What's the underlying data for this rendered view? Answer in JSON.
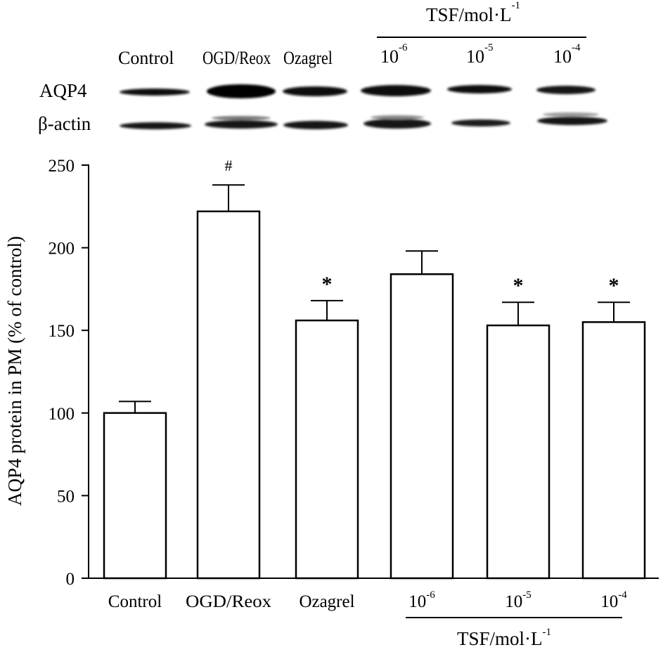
{
  "blot": {
    "group_header": {
      "base": "TSF/mol·L",
      "exp": "-1"
    },
    "lanes": [
      {
        "label": "Control"
      },
      {
        "label": "OGD/Reox"
      },
      {
        "label": "Ozagrel"
      },
      {
        "base": "10",
        "exp": "-6"
      },
      {
        "base": "10",
        "exp": "-5"
      },
      {
        "base": "10",
        "exp": "-4"
      }
    ],
    "rows": [
      "AQP4",
      "β-actin"
    ]
  },
  "chart_data": {
    "type": "bar",
    "title": "",
    "xlabel": "",
    "ylabel": "AQP4 protein in PM (% of control)",
    "ylim": [
      0,
      250
    ],
    "yticks": [
      "0",
      "50",
      "100",
      "150",
      "200",
      "250"
    ],
    "categories": [
      "Control",
      "OGD/Reox",
      "Ozagrel",
      "10-6",
      "10-5",
      "10-4"
    ],
    "category_labels": [
      {
        "label": "Control"
      },
      {
        "label": "OGD/Reox"
      },
      {
        "label": "Ozagrel"
      },
      {
        "base": "10",
        "exp": "-6"
      },
      {
        "base": "10",
        "exp": "-5"
      },
      {
        "base": "10",
        "exp": "-4"
      }
    ],
    "values": [
      100,
      222,
      156,
      184,
      153,
      155
    ],
    "errors": [
      7,
      16,
      12,
      14,
      14,
      12
    ],
    "annotations": [
      "",
      "#",
      "*",
      "",
      "*",
      "*"
    ],
    "group_label": {
      "base": "TSF/mol·L",
      "exp": "-1"
    },
    "bar_fill": "#ffffff",
    "bar_stroke": "#000000"
  }
}
